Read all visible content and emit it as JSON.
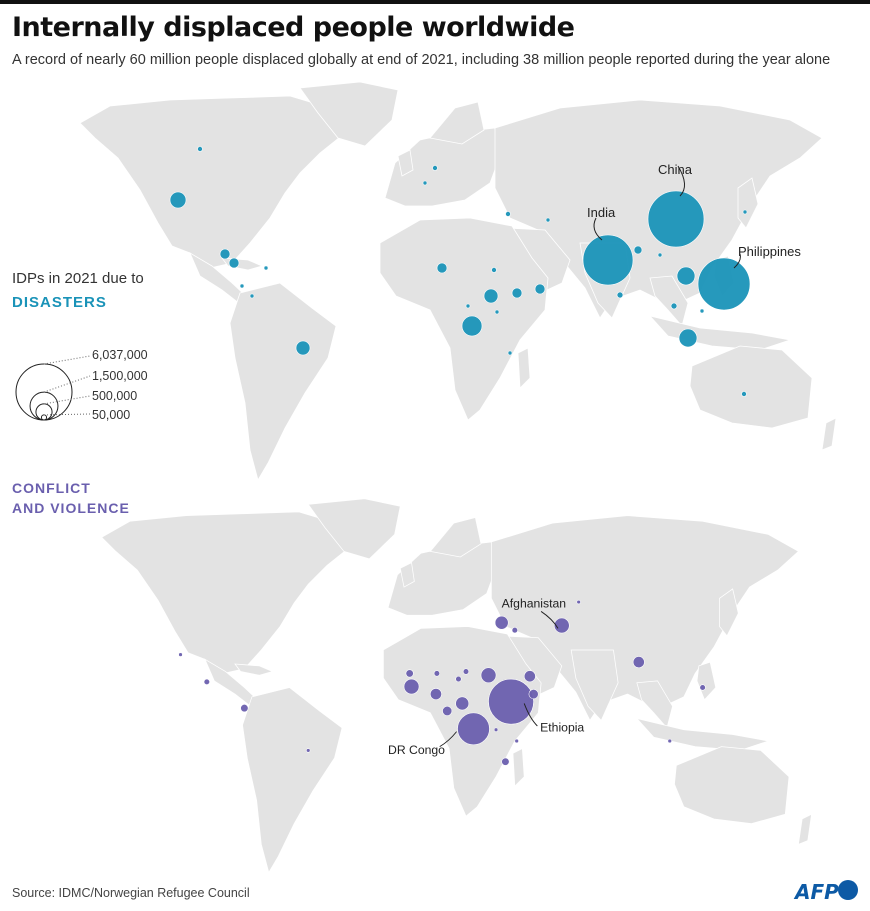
{
  "header": {
    "title": "Internally displaced people worldwide",
    "subtitle": "A record of nearly 60 million people displaced globally at end of 2021, including 38 million people reported during the year alone"
  },
  "legend": {
    "intro": "IDPs in 2021 due to",
    "disasters_label": "DISASTERS",
    "sizes": [
      {
        "label": "6,037,000",
        "value": 6037000
      },
      {
        "label": "1,500,000",
        "value": 1500000
      },
      {
        "label": "500,000",
        "value": 500000
      },
      {
        "label": "50,000",
        "value": 50000
      }
    ]
  },
  "conflict": {
    "label_line1": "CONFLICT",
    "label_line2": "AND VIOLENCE"
  },
  "callouts": {
    "china": "China",
    "india": "India",
    "philippines": "Philippines",
    "afghanistan": "Afghanistan",
    "ethiopia": "Ethiopia",
    "drcongo": "DR Congo"
  },
  "footer": {
    "source": "Source: IDMC/Norwegian Refugee Council",
    "brand": "AFP"
  },
  "colors": {
    "disasters": "#1a93b8",
    "conflict": "#6a5fae",
    "land": "#e3e3e3"
  }
}
